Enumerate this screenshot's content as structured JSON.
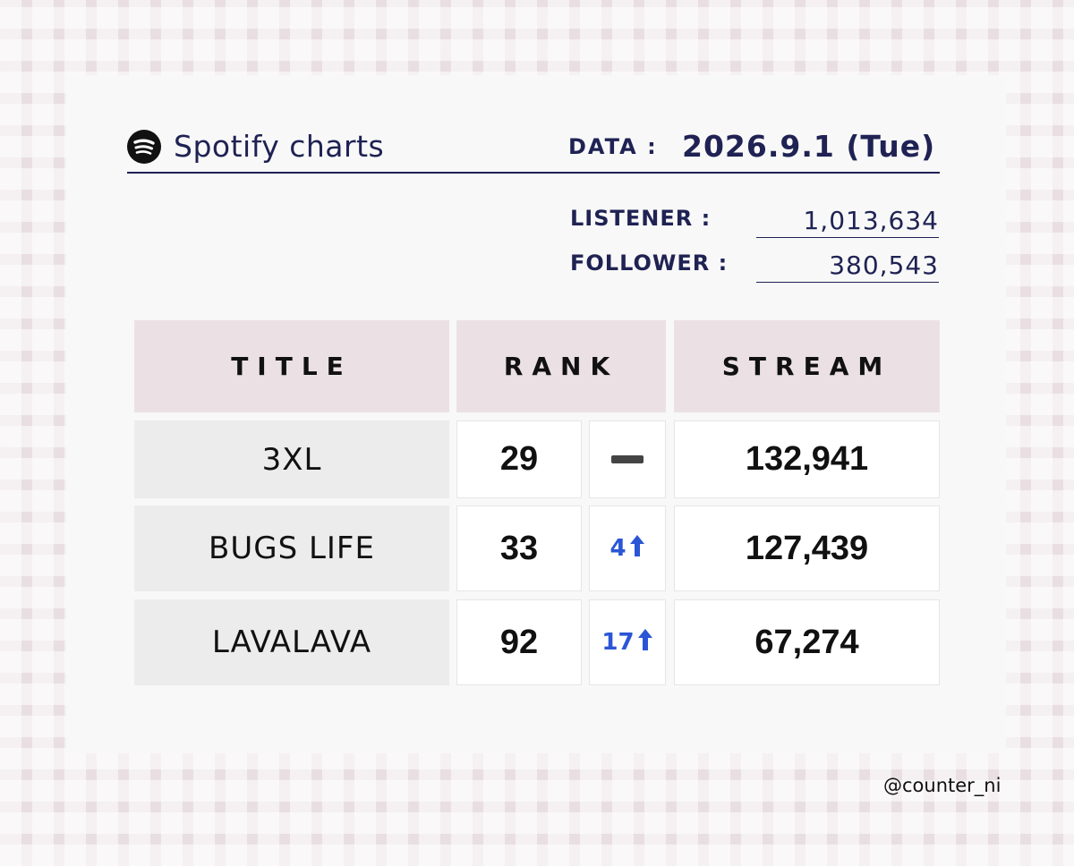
{
  "header": {
    "brand": "Spotify charts",
    "date_label": "DATA :",
    "date_value": "2026.9.1 (Tue)"
  },
  "stats": {
    "listener_label": "LISTENER :",
    "listener_value": "1,013,634",
    "follower_label": "FOLLOWER :",
    "follower_value": "380,543"
  },
  "table": {
    "headers": {
      "title": "TITLE",
      "rank": "RANK",
      "stream": "STREAM"
    },
    "rows": [
      {
        "title": "3XL",
        "rank": "29",
        "change": "",
        "change_type": "same",
        "stream": "132,941"
      },
      {
        "title": "BUGS LIFE",
        "rank": "33",
        "change": "4",
        "change_type": "up",
        "stream": "127,439"
      },
      {
        "title": "LAVALAVA",
        "rank": "92",
        "change": "17",
        "change_type": "up",
        "stream": "67,274"
      }
    ]
  },
  "footer": {
    "handle": "@counter_ni"
  },
  "colors": {
    "accent_navy": "#1f2253",
    "up_blue": "#2a56d6",
    "header_pink": "#ebe1e5"
  },
  "icons": {
    "brand": "spotify-icon",
    "up": "arrow-up-icon",
    "same": "dash-icon"
  }
}
